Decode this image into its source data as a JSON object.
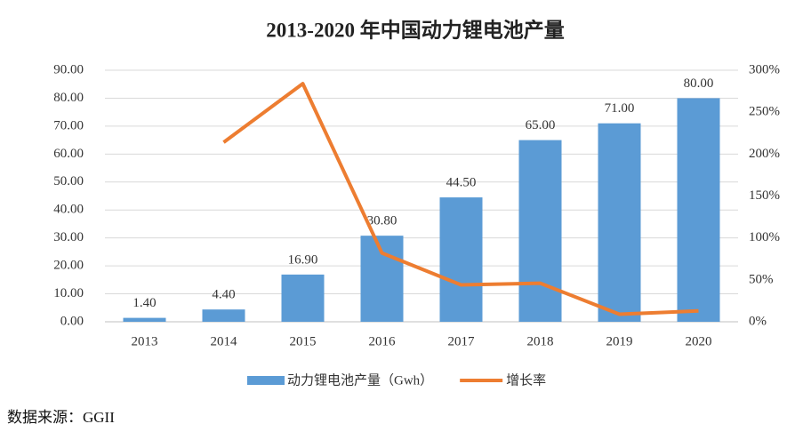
{
  "chart_data": {
    "type": "bar-line",
    "title": "2013-2020 年中国动力锂电池产量",
    "categories": [
      "2013",
      "2014",
      "2015",
      "2016",
      "2017",
      "2018",
      "2019",
      "2020"
    ],
    "series": [
      {
        "name": "动力锂电池产量（Gwh）",
        "type": "bar",
        "color": "#5b9bd5",
        "values": [
          1.4,
          4.4,
          16.9,
          30.8,
          44.5,
          65,
          71,
          80
        ],
        "value_labels": [
          "1.40",
          "4.40",
          "16.90",
          "30.80",
          "44.50",
          "65.00",
          "71.00",
          "80.00"
        ]
      },
      {
        "name": "增长率",
        "type": "line",
        "axis": "y2",
        "color": "#ed7d31",
        "values": [
          null,
          214,
          284,
          82,
          44,
          46,
          9,
          13
        ]
      }
    ],
    "ylim": [
      0,
      90
    ],
    "yticks": [
      {
        "value": 0,
        "label": "0.00"
      },
      {
        "value": 10,
        "label": "10.00"
      },
      {
        "value": 20,
        "label": "20.00"
      },
      {
        "value": 30,
        "label": "30.00"
      },
      {
        "value": 40,
        "label": "40.00"
      },
      {
        "value": 50,
        "label": "50.00"
      },
      {
        "value": 60,
        "label": "60.00"
      },
      {
        "value": 70,
        "label": "70.00"
      },
      {
        "value": 80,
        "label": "80.00"
      },
      {
        "value": 90,
        "label": "90.00"
      }
    ],
    "y2lim": [
      0,
      300
    ],
    "y2ticks": [
      {
        "value": 0,
        "label": "0%"
      },
      {
        "value": 50,
        "label": "50%"
      },
      {
        "value": 100,
        "label": "100%"
      },
      {
        "value": 150,
        "label": "150%"
      },
      {
        "value": 200,
        "label": "200%"
      },
      {
        "value": 250,
        "label": "250%"
      },
      {
        "value": 300,
        "label": "300%"
      }
    ],
    "grid": true,
    "legend": "bottom",
    "source": "数据来源：GGII"
  }
}
